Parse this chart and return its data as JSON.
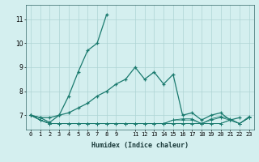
{
  "xlabel": "Humidex (Indice chaleur)",
  "x_all": [
    0,
    1,
    2,
    3,
    4,
    5,
    6,
    7,
    8,
    9,
    10,
    11,
    12,
    13,
    14,
    15,
    16,
    17,
    18,
    19,
    20,
    21,
    22,
    23
  ],
  "line_steep": [
    7.0,
    6.9,
    6.7,
    7.0,
    7.8,
    8.8,
    9.7,
    10.0,
    11.2,
    null,
    null,
    null,
    null,
    null,
    null,
    null,
    null,
    null,
    null,
    null,
    null,
    null,
    null,
    null
  ],
  "line_gradual": [
    7.0,
    6.9,
    6.9,
    7.0,
    7.1,
    7.3,
    7.5,
    7.8,
    8.0,
    8.3,
    8.5,
    9.0,
    8.5,
    8.8,
    8.3,
    8.7,
    7.0,
    7.1,
    6.8,
    7.0,
    7.1,
    6.8,
    6.9,
    null
  ],
  "line_flat1": [
    7.0,
    6.8,
    6.65,
    6.65,
    6.65,
    6.65,
    6.65,
    6.65,
    6.65,
    6.65,
    6.65,
    6.65,
    6.65,
    6.65,
    6.65,
    6.65,
    6.65,
    6.65,
    6.65,
    6.65,
    6.65,
    6.8,
    6.65,
    6.9
  ],
  "line_flat2": [
    7.0,
    6.8,
    6.65,
    6.65,
    6.65,
    6.65,
    6.65,
    6.65,
    6.65,
    6.65,
    6.65,
    6.65,
    6.65,
    6.65,
    6.65,
    6.65,
    6.65,
    6.65,
    6.65,
    6.65,
    6.65,
    6.8,
    6.65,
    6.9
  ],
  "line_flat3": [
    7.0,
    6.8,
    6.65,
    6.65,
    6.65,
    6.65,
    6.65,
    6.65,
    6.65,
    6.65,
    6.65,
    6.65,
    6.65,
    6.65,
    6.65,
    6.8,
    6.8,
    6.8,
    6.65,
    6.8,
    6.9,
    6.8,
    6.65,
    6.9
  ],
  "line_flat4": [
    7.0,
    6.8,
    6.65,
    6.65,
    6.65,
    6.65,
    6.65,
    6.65,
    6.65,
    6.65,
    6.65,
    6.65,
    6.65,
    6.65,
    6.65,
    6.8,
    6.85,
    6.85,
    6.65,
    6.85,
    6.95,
    6.85,
    6.65,
    6.95
  ],
  "color": "#1a7a6e",
  "bg_color": "#d4efef",
  "grid_color": "#aed4d4",
  "ylim": [
    6.4,
    11.6
  ],
  "xlim": [
    -0.5,
    23.5
  ],
  "yticks": [
    7,
    8,
    9,
    10,
    11
  ],
  "xticks": [
    0,
    1,
    2,
    3,
    4,
    5,
    6,
    7,
    8,
    9,
    11,
    12,
    13,
    14,
    15,
    16,
    17,
    18,
    19,
    20,
    21,
    22,
    23
  ]
}
